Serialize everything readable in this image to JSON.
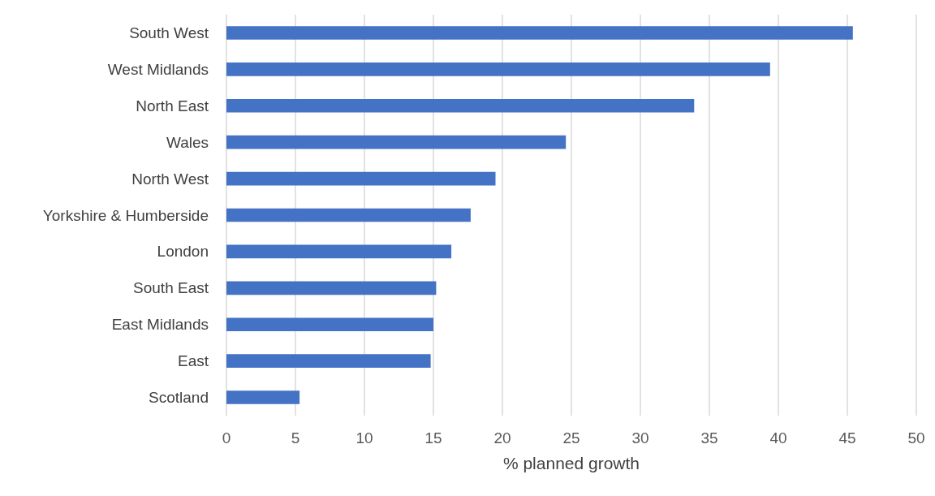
{
  "chart_data": {
    "type": "bar",
    "orientation": "horizontal",
    "xlabel": "% planned growth",
    "categories": [
      "South West",
      "West Midlands",
      "North East",
      "Wales",
      "North West",
      "Yorkshire & Humberside",
      "London",
      "South East",
      "East Midlands",
      "East",
      "Scotland"
    ],
    "values": [
      45.4,
      39.4,
      33.9,
      24.6,
      19.5,
      17.7,
      16.3,
      15.2,
      15.0,
      14.8,
      5.3
    ],
    "color": "#4472c4",
    "xlim": [
      0,
      50
    ],
    "xticks": [
      0,
      5,
      10,
      15,
      20,
      25,
      30,
      35,
      40,
      45,
      50
    ],
    "grid": "x"
  }
}
